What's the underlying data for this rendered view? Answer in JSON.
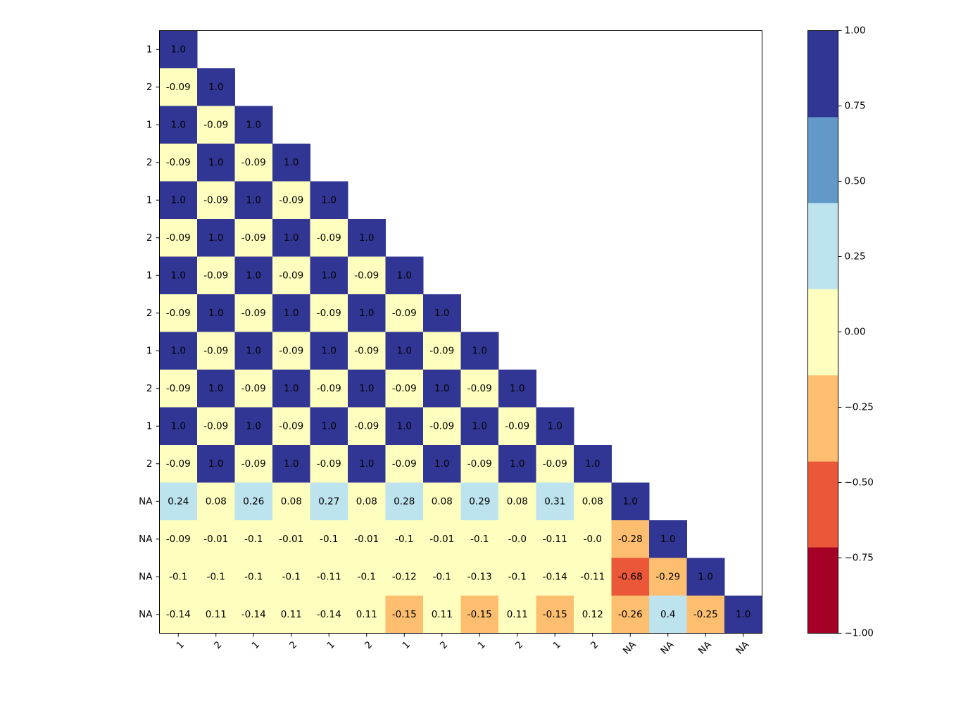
{
  "chart_data": {
    "type": "heatmap",
    "title": "",
    "xlabel": "",
    "ylabel": "",
    "row_labels": [
      "1",
      "2",
      "1",
      "2",
      "1",
      "2",
      "1",
      "2",
      "1",
      "2",
      "1",
      "2",
      "NA",
      "NA",
      "NA",
      "NA"
    ],
    "col_labels": [
      "1",
      "2",
      "1",
      "2",
      "1",
      "2",
      "1",
      "2",
      "1",
      "2",
      "1",
      "2",
      "NA",
      "NA",
      "NA",
      "NA"
    ],
    "values": [
      [
        "1.0"
      ],
      [
        "-0.09",
        "1.0"
      ],
      [
        "1.0",
        "-0.09",
        "1.0"
      ],
      [
        "-0.09",
        "1.0",
        "-0.09",
        "1.0"
      ],
      [
        "1.0",
        "-0.09",
        "1.0",
        "-0.09",
        "1.0"
      ],
      [
        "-0.09",
        "1.0",
        "-0.09",
        "1.0",
        "-0.09",
        "1.0"
      ],
      [
        "1.0",
        "-0.09",
        "1.0",
        "-0.09",
        "1.0",
        "-0.09",
        "1.0"
      ],
      [
        "-0.09",
        "1.0",
        "-0.09",
        "1.0",
        "-0.09",
        "1.0",
        "-0.09",
        "1.0"
      ],
      [
        "1.0",
        "-0.09",
        "1.0",
        "-0.09",
        "1.0",
        "-0.09",
        "1.0",
        "-0.09",
        "1.0"
      ],
      [
        "-0.09",
        "1.0",
        "-0.09",
        "1.0",
        "-0.09",
        "1.0",
        "-0.09",
        "1.0",
        "-0.09",
        "1.0"
      ],
      [
        "1.0",
        "-0.09",
        "1.0",
        "-0.09",
        "1.0",
        "-0.09",
        "1.0",
        "-0.09",
        "1.0",
        "-0.09",
        "1.0"
      ],
      [
        "-0.09",
        "1.0",
        "-0.09",
        "1.0",
        "-0.09",
        "1.0",
        "-0.09",
        "1.0",
        "-0.09",
        "1.0",
        "-0.09",
        "1.0"
      ],
      [
        "0.24",
        "0.08",
        "0.26",
        "0.08",
        "0.27",
        "0.08",
        "0.28",
        "0.08",
        "0.29",
        "0.08",
        "0.31",
        "0.08",
        "1.0"
      ],
      [
        "-0.09",
        "-0.01",
        "-0.1",
        "-0.01",
        "-0.1",
        "-0.01",
        "-0.1",
        "-0.01",
        "-0.1",
        "-0.0",
        "-0.11",
        "-0.0",
        "-0.28",
        "1.0"
      ],
      [
        "-0.1",
        "-0.1",
        "-0.1",
        "-0.1",
        "-0.11",
        "-0.1",
        "-0.12",
        "-0.1",
        "-0.13",
        "-0.1",
        "-0.14",
        "-0.11",
        "-0.68",
        "-0.29",
        "1.0"
      ],
      [
        "-0.14",
        "0.11",
        "-0.14",
        "0.11",
        "-0.14",
        "0.11",
        "-0.15",
        "0.11",
        "-0.15",
        "0.11",
        "-0.15",
        "0.12",
        "-0.26",
        "0.4",
        "-0.25",
        "1.0"
      ]
    ],
    "colorbar": {
      "range": [
        -1.0,
        1.0
      ],
      "bounds": [
        -1.0,
        -0.714,
        -0.429,
        -0.143,
        0.143,
        0.429,
        0.714,
        1.0
      ],
      "colors": [
        "#a50026",
        "#ea5739",
        "#fdbf6f",
        "#feffbe",
        "#bce3ee",
        "#6399c8",
        "#313694"
      ],
      "tick_values": [
        1.0,
        0.75,
        0.5,
        0.25,
        0.0,
        -0.25,
        -0.5,
        -0.75,
        -1.0
      ],
      "tick_labels": [
        "1.00",
        "0.75",
        "0.50",
        "0.25",
        "0.00",
        "−0.25",
        "−0.50",
        "−0.75",
        "−1.00"
      ]
    },
    "grid": false,
    "legend": "colorbar-right"
  }
}
